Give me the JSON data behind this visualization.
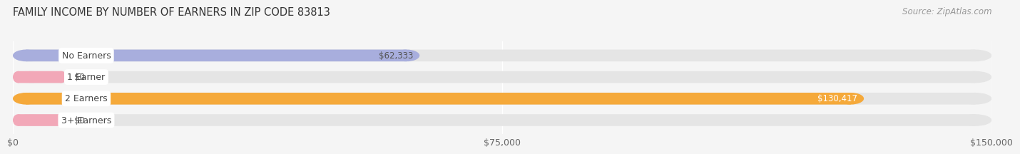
{
  "title": "FAMILY INCOME BY NUMBER OF EARNERS IN ZIP CODE 83813",
  "source": "Source: ZipAtlas.com",
  "categories": [
    "No Earners",
    "1 Earner",
    "2 Earners",
    "3+ Earners"
  ],
  "values": [
    62333,
    0,
    130417,
    0
  ],
  "bar_colors": [
    "#a8aedd",
    "#f2a8b8",
    "#f5a93a",
    "#f2a8b8"
  ],
  "value_labels": [
    "$62,333",
    "$0",
    "$130,417",
    "$0"
  ],
  "value_label_colors": [
    "#555555",
    "#555555",
    "#ffffff",
    "#555555"
  ],
  "xlim": [
    0,
    150000
  ],
  "xticks": [
    0,
    75000,
    150000
  ],
  "xticklabels": [
    "$0",
    "$75,000",
    "$150,000"
  ],
  "bg_color": "#f5f5f5",
  "bar_bg_color": "#e5e5e5",
  "title_fontsize": 10.5,
  "source_fontsize": 8.5,
  "tick_fontsize": 9,
  "label_fontsize": 9,
  "value_fontsize": 8.5,
  "bar_height": 0.55
}
